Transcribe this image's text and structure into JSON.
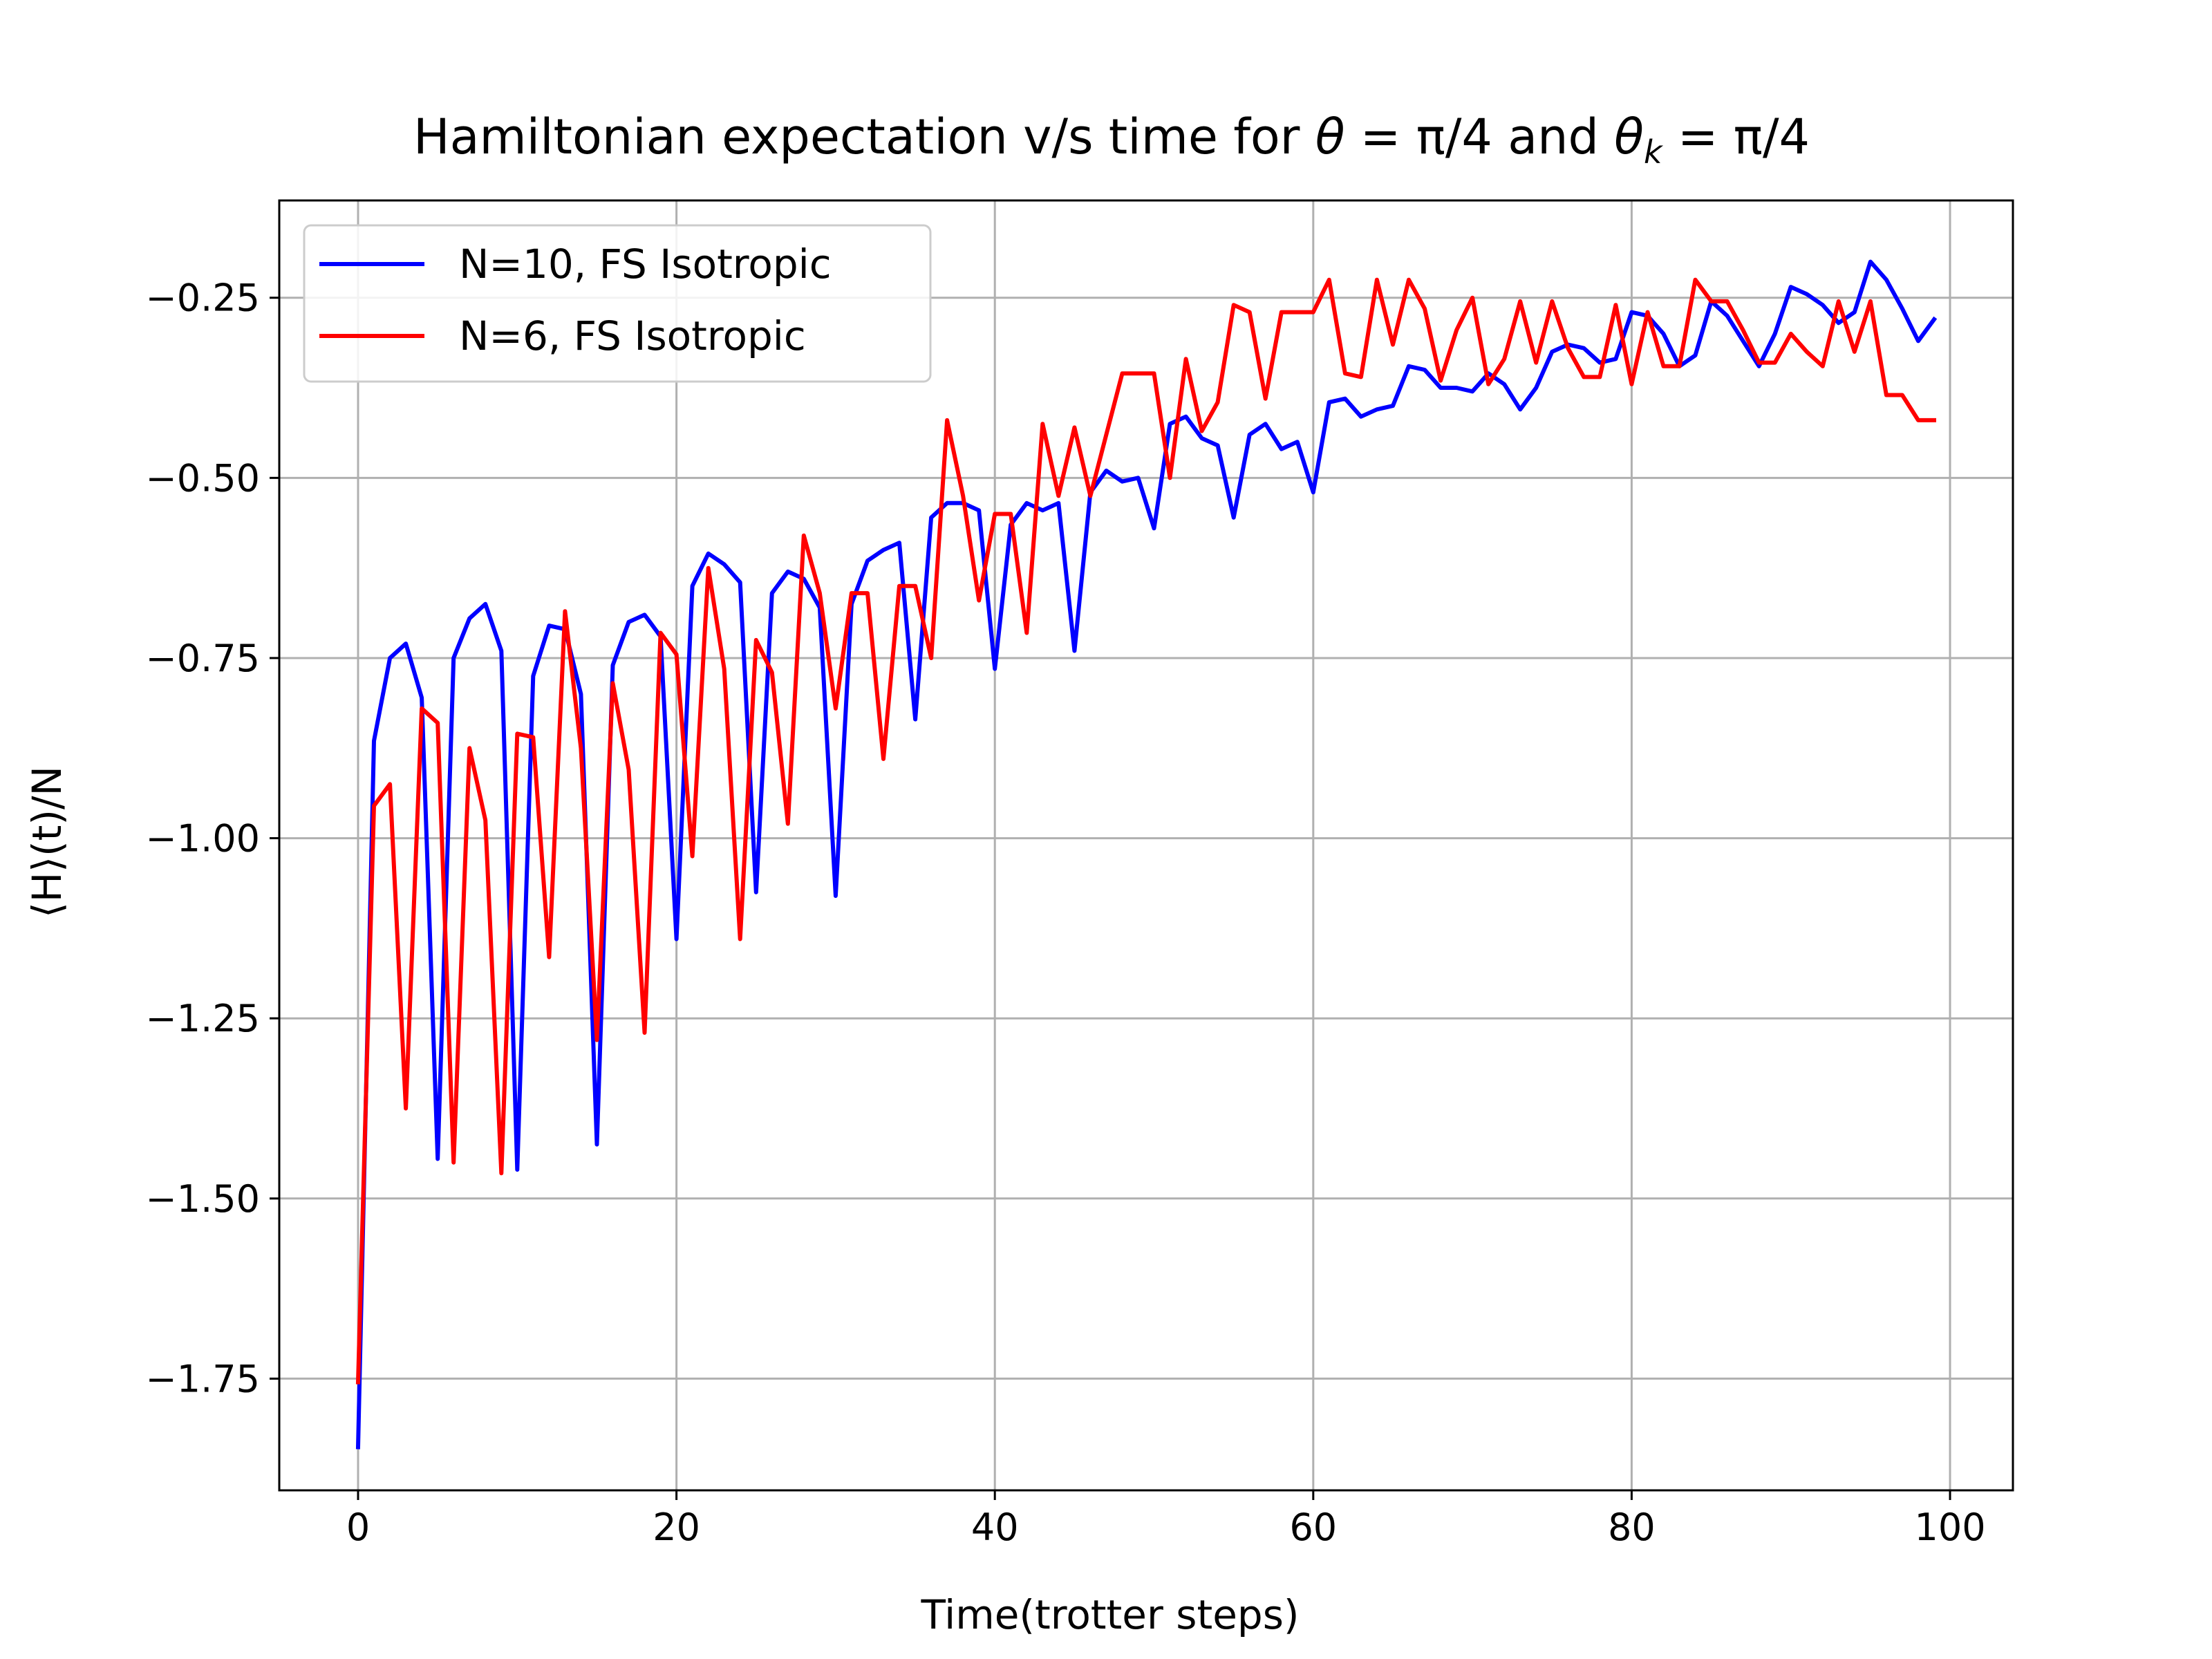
{
  "chart_data": {
    "type": "line",
    "title": {
      "main": "Hamiltonian expectation v/s time for ",
      "theta": "θ",
      "eq1": " = π/4",
      "and": " and ",
      "theta_k": "θ",
      "sub_k": "k",
      "eq2": " = π/4"
    },
    "xlabel": "Time(trotter steps)",
    "ylabel": "⟨H⟩(t)/N",
    "xlim": [
      -4.95,
      103.95
    ],
    "ylim": [
      -1.905,
      -0.115
    ],
    "xticks": [
      0,
      20,
      40,
      60,
      80,
      100
    ],
    "xtick_labels": [
      "0",
      "20",
      "40",
      "60",
      "80",
      "100"
    ],
    "yticks": [
      -1.75,
      -1.5,
      -1.25,
      -1.0,
      -0.75,
      -0.5,
      -0.25
    ],
    "ytick_labels": [
      "−1.75",
      "−1.50",
      "−1.25",
      "−1.00",
      "−0.75",
      "−0.50",
      "−0.25"
    ],
    "grid": true,
    "legend_position": "upper-left",
    "series": [
      {
        "name": "N=10, FS Isotropic",
        "color": "#0000ff",
        "values": [
          -1.845,
          -0.865,
          -0.75,
          -0.73,
          -0.805,
          -1.445,
          -0.75,
          -0.695,
          -0.675,
          -0.74,
          -1.46,
          -0.775,
          -0.705,
          -0.71,
          -0.8,
          -1.425,
          -0.76,
          -0.7,
          -0.69,
          -0.72,
          -1.14,
          -0.65,
          -0.605,
          -0.62,
          -0.645,
          -1.075,
          -0.66,
          -0.63,
          -0.64,
          -0.68,
          -1.08,
          -0.675,
          -0.615,
          -0.6,
          -0.59,
          -0.835,
          -0.555,
          -0.535,
          -0.535,
          -0.545,
          -0.765,
          -0.565,
          -0.535,
          -0.545,
          -0.535,
          -0.74,
          -0.52,
          -0.49,
          -0.505,
          -0.5,
          -0.57,
          -0.425,
          -0.415,
          -0.445,
          -0.455,
          -0.555,
          -0.44,
          -0.425,
          -0.46,
          -0.45,
          -0.52,
          -0.395,
          -0.39,
          -0.415,
          -0.405,
          -0.4,
          -0.345,
          -0.35,
          -0.375,
          -0.375,
          -0.38,
          -0.355,
          -0.37,
          -0.405,
          -0.375,
          -0.325,
          -0.315,
          -0.32,
          -0.34,
          -0.335,
          -0.27,
          -0.275,
          -0.3,
          -0.345,
          -0.33,
          -0.255,
          -0.275,
          -0.31,
          -0.345,
          -0.3,
          -0.235,
          -0.245,
          -0.26,
          -0.285,
          -0.27,
          -0.2,
          -0.225,
          -0.265,
          -0.31,
          -0.28
        ]
      },
      {
        "name": "N=6, FS Isotropic",
        "color": "#ff0000",
        "values": [
          -1.755,
          -0.955,
          -0.925,
          -1.375,
          -0.82,
          -0.84,
          -1.45,
          -0.875,
          -0.975,
          -1.465,
          -0.855,
          -0.86,
          -1.165,
          -0.685,
          -0.875,
          -1.28,
          -0.785,
          -0.905,
          -1.27,
          -0.715,
          -0.745,
          -1.025,
          -0.625,
          -0.765,
          -1.14,
          -0.725,
          -0.77,
          -0.98,
          -0.58,
          -0.66,
          -0.82,
          -0.66,
          -0.66,
          -0.89,
          -0.65,
          -0.65,
          -0.75,
          -0.42,
          -0.525,
          -0.67,
          -0.55,
          -0.55,
          -0.715,
          -0.425,
          -0.525,
          -0.43,
          -0.525,
          -0.44,
          -0.355,
          -0.355,
          -0.355,
          -0.5,
          -0.335,
          -0.435,
          -0.395,
          -0.26,
          -0.27,
          -0.39,
          -0.27,
          -0.27,
          -0.27,
          -0.225,
          -0.355,
          -0.36,
          -0.225,
          -0.315,
          -0.225,
          -0.265,
          -0.365,
          -0.295,
          -0.25,
          -0.37,
          -0.335,
          -0.255,
          -0.34,
          -0.255,
          -0.32,
          -0.36,
          -0.36,
          -0.26,
          -0.37,
          -0.27,
          -0.345,
          -0.345,
          -0.225,
          -0.255,
          -0.255,
          -0.295,
          -0.34,
          -0.34,
          -0.3,
          -0.325,
          -0.345,
          -0.255,
          -0.325,
          -0.255,
          -0.385,
          -0.385,
          -0.42,
          -0.42
        ]
      }
    ]
  }
}
